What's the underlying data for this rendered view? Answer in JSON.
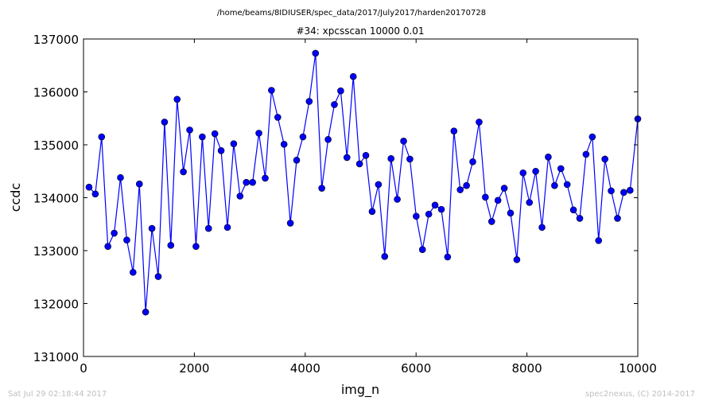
{
  "suptitle": "/home/beams/8IDIUSER/spec_data/2017/July2017/harden20170728",
  "footer": {
    "left": "Sat Jul 29 02:18:44 2017",
    "right": "spec2nexus, (C) 2014-2017"
  },
  "colors": {
    "series": "#0000ff",
    "marker": "#0000ff"
  },
  "chart_data": {
    "type": "line",
    "title": "#34: xpcsscan 10000 0.01",
    "xlabel": "img_n",
    "ylabel": "ccdc",
    "xlim": [
      0,
      10000
    ],
    "ylim": [
      131000,
      137000
    ],
    "xticks": [
      0,
      2000,
      4000,
      6000,
      8000,
      10000
    ],
    "yticks": [
      131000,
      132000,
      133000,
      134000,
      135000,
      136000,
      137000
    ],
    "xtick_labels": [
      "0",
      "2000",
      "4000",
      "6000",
      "8000",
      "10000"
    ],
    "ytick_labels": [
      "131000",
      "132000",
      "133000",
      "134000",
      "135000",
      "136000",
      "137000"
    ],
    "grid": false,
    "x": [
      100,
      213,
      327,
      440,
      554,
      667,
      781,
      894,
      1008,
      1121,
      1235,
      1348,
      1462,
      1575,
      1689,
      1802,
      1916,
      2029,
      2143,
      2256,
      2370,
      2483,
      2597,
      2710,
      2824,
      2937,
      3051,
      3164,
      3278,
      3391,
      3505,
      3618,
      3732,
      3845,
      3959,
      4072,
      4186,
      4299,
      4413,
      4526,
      4640,
      4753,
      4867,
      4980,
      5094,
      5207,
      5321,
      5434,
      5548,
      5661,
      5775,
      5888,
      6002,
      6115,
      6229,
      6342,
      6456,
      6569,
      6683,
      6796,
      6910,
      7023,
      7137,
      7250,
      7364,
      7477,
      7591,
      7704,
      7818,
      7931,
      8045,
      8158,
      8272,
      8385,
      8499,
      8612,
      8726,
      8839,
      8953,
      9066,
      9180,
      9293,
      9407,
      9520,
      9634,
      9747,
      9861,
      10000
    ],
    "series": [
      {
        "values": [
          134200,
          134070,
          135150,
          133080,
          133330,
          134380,
          133200,
          132590,
          134260,
          131840,
          133420,
          132510,
          135430,
          133100,
          135860,
          134490,
          135280,
          133080,
          135150,
          133420,
          135210,
          134890,
          133440,
          135020,
          134030,
          134290,
          134290,
          135220,
          134370,
          136030,
          135520,
          135010,
          133520,
          134710,
          135150,
          135820,
          136730,
          134180,
          135100,
          135760,
          136020,
          134760,
          136290,
          134640,
          134800,
          133740,
          134250,
          132890,
          134740,
          133970,
          135070,
          134730,
          133650,
          133020,
          133690,
          133860,
          133780,
          132880,
          135260,
          134150,
          134230,
          134680,
          135430,
          134010,
          133550,
          133950,
          134180,
          133710,
          132830,
          134470,
          133910,
          134500,
          133440,
          134770,
          134230,
          134550,
          134250,
          133770,
          133610,
          134820,
          135150,
          133190,
          134730,
          134130,
          133610,
          134100,
          134140,
          135490
        ]
      }
    ]
  }
}
